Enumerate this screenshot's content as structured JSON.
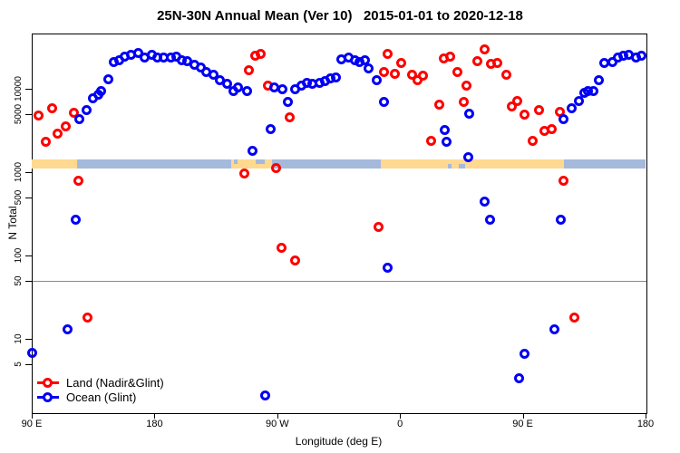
{
  "title": "25N-30N Annual Mean (Ver 10)   2015-01-01 to 2020-12-18",
  "axes": {
    "y_label": "N Total",
    "x_label": "Longitude (deg E)",
    "y_ticks": [
      {
        "v": 5,
        "label": "5"
      },
      {
        "v": 10,
        "label": "10"
      },
      {
        "v": 50,
        "label": "50"
      },
      {
        "v": 100,
        "label": "100"
      },
      {
        "v": 500,
        "label": "500"
      },
      {
        "v": 1000,
        "label": "1000"
      },
      {
        "v": 5000,
        "label": "5000"
      },
      {
        "v": 10000,
        "label": "10000"
      }
    ],
    "x_ticks": [
      {
        "lon": 90,
        "label": "90 E"
      },
      {
        "lon": 180,
        "label": "180"
      },
      {
        "lon": 270,
        "label": "90 W"
      },
      {
        "lon": 360,
        "label": "0"
      },
      {
        "lon": 450,
        "label": "90 E"
      },
      {
        "lon": 540,
        "label": "180"
      }
    ]
  },
  "chart_data": {
    "type": "scatter",
    "title": "25N-30N Annual Mean (Ver 10)   2015-01-01 to 2020-12-18",
    "xlabel": "Longitude (deg E)",
    "ylabel": "N Total",
    "x_axis_note": "longitude shown from 90E eastward around the globe to 180 (axis units deg E, 90 to 540)",
    "xlim": [
      90,
      540
    ],
    "y_scale": "log",
    "ylim": [
      1.3,
      46000
    ],
    "reference_line": {
      "value": 50,
      "color": "#8a8a8a"
    },
    "legend_position": "bottom-left",
    "series": [
      {
        "name": "Land (Nadir&Glint)",
        "color": "#ff0000",
        "points": [
          [
            95,
            4800
          ],
          [
            100,
            2300
          ],
          [
            105,
            5800
          ],
          [
            109,
            2900
          ],
          [
            115,
            3500
          ],
          [
            121,
            5200
          ],
          [
            124,
            780
          ],
          [
            131,
            18
          ],
          [
            246,
            975
          ],
          [
            249,
            16500
          ],
          [
            254,
            25200
          ],
          [
            258,
            26500
          ],
          [
            263,
            10900
          ],
          [
            269,
            1130
          ],
          [
            273,
            125
          ],
          [
            279,
            4500
          ],
          [
            283,
            88
          ],
          [
            344,
            220
          ],
          [
            348,
            15800
          ],
          [
            351,
            26500
          ],
          [
            356,
            15300
          ],
          [
            361,
            20500
          ],
          [
            369,
            14800
          ],
          [
            373,
            12800
          ],
          [
            377,
            14500
          ],
          [
            383,
            2400
          ],
          [
            389,
            6400
          ],
          [
            392,
            23000
          ],
          [
            397,
            24500
          ],
          [
            402,
            15800
          ],
          [
            407,
            6900
          ],
          [
            409,
            11000
          ],
          [
            417,
            21500
          ],
          [
            422,
            30000
          ],
          [
            427,
            20000
          ],
          [
            431,
            20500
          ],
          [
            438,
            14800
          ],
          [
            442,
            6200
          ],
          [
            446,
            7100
          ],
          [
            451,
            4900
          ],
          [
            457,
            2400
          ],
          [
            462,
            5500
          ],
          [
            466,
            3100
          ],
          [
            471,
            3300
          ],
          [
            477,
            5300
          ],
          [
            480,
            780
          ],
          [
            488,
            18
          ]
        ]
      },
      {
        "name": "Ocean (Glint)",
        "color": "#0000f5",
        "points": [
          [
            90,
            6.8
          ],
          [
            116,
            13
          ],
          [
            122,
            270
          ],
          [
            125,
            4300
          ],
          [
            130,
            5500
          ],
          [
            135,
            7600
          ],
          [
            139,
            8600
          ],
          [
            141,
            9500
          ],
          [
            146,
            13000
          ],
          [
            150,
            20800
          ],
          [
            154,
            22000
          ],
          [
            158,
            24500
          ],
          [
            163,
            25700
          ],
          [
            168,
            27000
          ],
          [
            173,
            24000
          ],
          [
            178,
            25700
          ],
          [
            182,
            23500
          ],
          [
            187,
            24000
          ],
          [
            192,
            23500
          ],
          [
            196,
            24500
          ],
          [
            200,
            22000
          ],
          [
            204,
            21500
          ],
          [
            209,
            19500
          ],
          [
            214,
            18000
          ],
          [
            218,
            16000
          ],
          [
            223,
            14800
          ],
          [
            228,
            12800
          ],
          [
            233,
            11600
          ],
          [
            238,
            9500
          ],
          [
            241,
            10500
          ],
          [
            248,
            9500
          ],
          [
            252,
            1800
          ],
          [
            261,
            2.1
          ],
          [
            265,
            3300
          ],
          [
            268,
            10300
          ],
          [
            274,
            9800
          ],
          [
            278,
            6900
          ],
          [
            283,
            9800
          ],
          [
            288,
            10900
          ],
          [
            292,
            11900
          ],
          [
            296,
            11600
          ],
          [
            301,
            11900
          ],
          [
            305,
            12500
          ],
          [
            309,
            13500
          ],
          [
            313,
            13800
          ],
          [
            317,
            22800
          ],
          [
            322,
            24000
          ],
          [
            327,
            22000
          ],
          [
            330,
            21000
          ],
          [
            334,
            22000
          ],
          [
            337,
            17700
          ],
          [
            343,
            12800
          ],
          [
            348,
            6900
          ],
          [
            351,
            72
          ],
          [
            393,
            3200
          ],
          [
            394,
            2340
          ],
          [
            410,
            1530
          ],
          [
            411,
            5000
          ],
          [
            422,
            440
          ],
          [
            426,
            270
          ],
          [
            447,
            3.4
          ],
          [
            451,
            6.7
          ],
          [
            473,
            13
          ],
          [
            478,
            270
          ],
          [
            480,
            4300
          ],
          [
            486,
            5800
          ],
          [
            491,
            7200
          ],
          [
            495,
            9000
          ],
          [
            498,
            9300
          ],
          [
            502,
            9500
          ],
          [
            506,
            12800
          ],
          [
            510,
            20500
          ],
          [
            516,
            21000
          ],
          [
            520,
            23500
          ],
          [
            524,
            25200
          ],
          [
            528,
            25700
          ],
          [
            533,
            24000
          ],
          [
            537,
            25200
          ]
        ]
      }
    ],
    "surface_band": {
      "description": "land/ocean surface-type strip along the latitude circle",
      "value_range": [
        1110,
        1420
      ],
      "land_color": "#ffd98f",
      "ocean_color": "#a5b9db",
      "segments": [
        {
          "type": "land",
          "from": 90,
          "to": 123
        },
        {
          "type": "ocean",
          "from": 123,
          "to": 236
        },
        {
          "type": "land",
          "from": 236,
          "to": 266
        },
        {
          "type": "ocean",
          "from": 266,
          "to": 346
        },
        {
          "type": "land",
          "from": 346,
          "to": 480
        },
        {
          "type": "ocean",
          "from": 480,
          "to": 540
        }
      ],
      "ocean_patches": [
        {
          "from": 238,
          "to": 241,
          "half": "top"
        },
        {
          "from": 254,
          "to": 261,
          "half": "top"
        },
        {
          "from": 395,
          "to": 398,
          "half": "bottom"
        },
        {
          "from": 403,
          "to": 408,
          "half": "bottom"
        }
      ]
    }
  }
}
